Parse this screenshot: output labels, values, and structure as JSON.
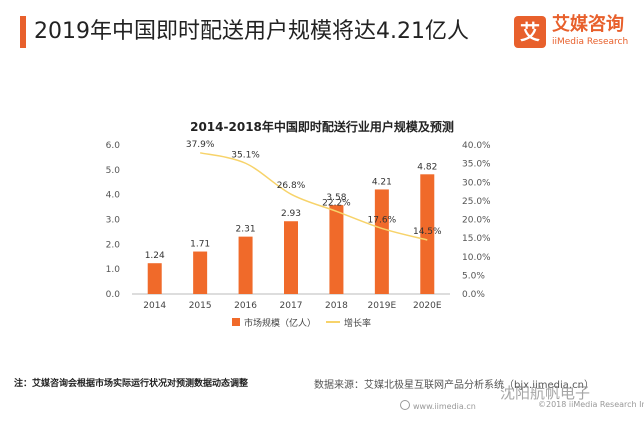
{
  "header": {
    "title": "2019年中国即时配送用户规模将达4.21亿人"
  },
  "logo": {
    "icon_char": "艾",
    "name_cn": "艾媒咨询",
    "name_en": "iiMedia Research"
  },
  "footer": {
    "note": "注：艾媒咨询会根据市场实际运行状况对预测数据动态调整",
    "source": "数据来源：艾媒北极星互联网产品分析系统（bjx.iimedia.cn）",
    "url": "www.iimedia.cn",
    "copyright": "©2018  iiMedia Research  Inc",
    "watermark": "沈阳航帆电子"
  },
  "chart_data": {
    "type": "bar",
    "title": "2014-2018年中国即时配送行业用户规模及预测",
    "categories": [
      "2014",
      "2015",
      "2016",
      "2017",
      "2018",
      "2019E",
      "2020E"
    ],
    "series": [
      {
        "name": "市场规模（亿人）",
        "type": "bar",
        "axis": "left",
        "color": "#f06a2a",
        "values": [
          1.24,
          1.71,
          2.31,
          2.93,
          3.58,
          4.21,
          4.82
        ],
        "labels": [
          "1.24",
          "1.71",
          "2.31",
          "2.93",
          "3.58",
          "4.21",
          "4.82"
        ]
      },
      {
        "name": "增长率",
        "type": "line",
        "axis": "right",
        "color": "#f7d36a",
        "x": [
          "2015",
          "2016",
          "2017",
          "2018",
          "2019E",
          "2020E"
        ],
        "values": [
          37.9,
          35.1,
          26.8,
          22.2,
          17.6,
          14.5
        ],
        "labels": [
          "37.9%",
          "35.1%",
          "26.8%",
          "22.2%",
          "17.6%",
          "14.5%"
        ]
      }
    ],
    "ylim": [
      0,
      6
    ],
    "yticks": [
      "0.0",
      "1.0",
      "2.0",
      "3.0",
      "4.0",
      "5.0",
      "6.0"
    ],
    "y2lim": [
      0,
      40
    ],
    "y2ticks": [
      "0.0%",
      "5.0%",
      "10.0%",
      "15.0%",
      "20.0%",
      "25.0%",
      "30.0%",
      "35.0%",
      "40.0%"
    ],
    "legend_position": "bottom",
    "grid": false
  }
}
